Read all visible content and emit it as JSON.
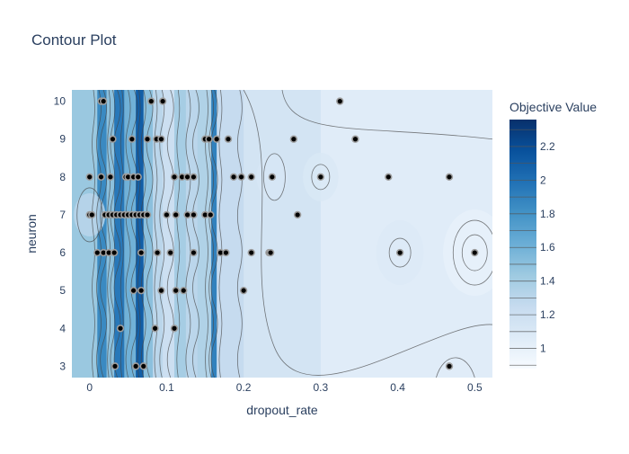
{
  "chart_data": {
    "type": "contour",
    "title": "Contour Plot",
    "xlabel": "dropout_rate",
    "ylabel": "neuron",
    "xlim": [
      -0.023,
      0.523
    ],
    "ylim": [
      2.7,
      10.3
    ],
    "xticks": [
      {
        "value": 0,
        "label": "0"
      },
      {
        "value": 0.1,
        "label": "0.1"
      },
      {
        "value": 0.2,
        "label": "0.2"
      },
      {
        "value": 0.3,
        "label": "0.3"
      },
      {
        "value": 0.4,
        "label": "0.4"
      },
      {
        "value": 0.5,
        "label": "0.5"
      }
    ],
    "yticks": [
      {
        "value": 3,
        "label": "3"
      },
      {
        "value": 4,
        "label": "4"
      },
      {
        "value": 5,
        "label": "5"
      },
      {
        "value": 6,
        "label": "6"
      },
      {
        "value": 7,
        "label": "7"
      },
      {
        "value": 8,
        "label": "8"
      },
      {
        "value": 9,
        "label": "9"
      },
      {
        "value": 10,
        "label": "10"
      }
    ],
    "colorbar": {
      "title": "Objective Value",
      "range": [
        0.88,
        2.36
      ],
      "ticks": [
        {
          "value": 1,
          "label": "1"
        },
        {
          "value": 1.2,
          "label": "1.2"
        },
        {
          "value": 1.4,
          "label": "1.4"
        },
        {
          "value": 1.6,
          "label": "1.6"
        },
        {
          "value": 1.8,
          "label": "1.8"
        },
        {
          "value": 2,
          "label": "2"
        },
        {
          "value": 2.2,
          "label": "2.2"
        }
      ],
      "colors": [
        "#f7fbff",
        "#deebf7",
        "#c6dbef",
        "#9ecae1",
        "#6baed6",
        "#4292c6",
        "#2171b5",
        "#08519c",
        "#08306b"
      ]
    },
    "background_bands": [
      {
        "x": [
          -0.023,
          0.01
        ],
        "value": 1.45
      },
      {
        "x": [
          0.01,
          0.022
        ],
        "value": 1.85
      },
      {
        "x": [
          0.022,
          0.032
        ],
        "value": 1.5
      },
      {
        "x": [
          0.032,
          0.045
        ],
        "value": 1.95
      },
      {
        "x": [
          0.045,
          0.06
        ],
        "value": 1.6
      },
      {
        "x": [
          0.06,
          0.07
        ],
        "value": 2.1
      },
      {
        "x": [
          0.07,
          0.082
        ],
        "value": 1.5
      },
      {
        "x": [
          0.082,
          0.095
        ],
        "value": 1.3
      },
      {
        "x": [
          0.095,
          0.11
        ],
        "value": 1.2
      },
      {
        "x": [
          0.11,
          0.125
        ],
        "value": 1.4
      },
      {
        "x": [
          0.125,
          0.14
        ],
        "value": 1.3
      },
      {
        "x": [
          0.14,
          0.158
        ],
        "value": 1.35
      },
      {
        "x": [
          0.158,
          0.165
        ],
        "value": 1.9
      },
      {
        "x": [
          0.165,
          0.2
        ],
        "value": 1.25
      },
      {
        "x": [
          0.2,
          0.3
        ],
        "value": 1.15
      },
      {
        "x": [
          0.3,
          0.523
        ],
        "value": 1.05
      }
    ],
    "contour_lines_x": [
      0.005,
      0.012,
      0.018,
      0.025,
      0.03,
      0.036,
      0.042,
      0.05,
      0.058,
      0.064,
      0.07,
      0.078,
      0.086,
      0.094,
      0.105,
      0.115,
      0.128,
      0.138,
      0.152,
      0.158,
      0.162,
      0.17,
      0.195
    ],
    "points": [
      {
        "x": 0.015,
        "y": 10
      },
      {
        "x": 0.018,
        "y": 10
      },
      {
        "x": 0.08,
        "y": 10
      },
      {
        "x": 0.095,
        "y": 10
      },
      {
        "x": 0.325,
        "y": 10
      },
      {
        "x": 0.03,
        "y": 9
      },
      {
        "x": 0.055,
        "y": 9
      },
      {
        "x": 0.075,
        "y": 9
      },
      {
        "x": 0.087,
        "y": 9
      },
      {
        "x": 0.093,
        "y": 9
      },
      {
        "x": 0.15,
        "y": 9
      },
      {
        "x": 0.155,
        "y": 9
      },
      {
        "x": 0.165,
        "y": 9
      },
      {
        "x": 0.18,
        "y": 9
      },
      {
        "x": 0.265,
        "y": 9
      },
      {
        "x": 0.345,
        "y": 9
      },
      {
        "x": 0.0,
        "y": 8
      },
      {
        "x": 0.015,
        "y": 8
      },
      {
        "x": 0.027,
        "y": 8
      },
      {
        "x": 0.047,
        "y": 8
      },
      {
        "x": 0.05,
        "y": 8
      },
      {
        "x": 0.057,
        "y": 8
      },
      {
        "x": 0.063,
        "y": 8
      },
      {
        "x": 0.11,
        "y": 8
      },
      {
        "x": 0.12,
        "y": 8
      },
      {
        "x": 0.127,
        "y": 8
      },
      {
        "x": 0.135,
        "y": 8
      },
      {
        "x": 0.187,
        "y": 8
      },
      {
        "x": 0.197,
        "y": 8
      },
      {
        "x": 0.21,
        "y": 8
      },
      {
        "x": 0.237,
        "y": 8
      },
      {
        "x": 0.3,
        "y": 8
      },
      {
        "x": 0.388,
        "y": 8
      },
      {
        "x": 0.467,
        "y": 8
      },
      {
        "x": 0.0,
        "y": 7
      },
      {
        "x": 0.003,
        "y": 7
      },
      {
        "x": 0.02,
        "y": 7
      },
      {
        "x": 0.025,
        "y": 7
      },
      {
        "x": 0.03,
        "y": 7
      },
      {
        "x": 0.035,
        "y": 7
      },
      {
        "x": 0.04,
        "y": 7
      },
      {
        "x": 0.045,
        "y": 7
      },
      {
        "x": 0.05,
        "y": 7
      },
      {
        "x": 0.055,
        "y": 7
      },
      {
        "x": 0.06,
        "y": 7
      },
      {
        "x": 0.065,
        "y": 7
      },
      {
        "x": 0.07,
        "y": 7
      },
      {
        "x": 0.075,
        "y": 7
      },
      {
        "x": 0.1,
        "y": 7
      },
      {
        "x": 0.112,
        "y": 7
      },
      {
        "x": 0.127,
        "y": 7
      },
      {
        "x": 0.135,
        "y": 7
      },
      {
        "x": 0.15,
        "y": 7
      },
      {
        "x": 0.157,
        "y": 7
      },
      {
        "x": 0.27,
        "y": 7
      },
      {
        "x": 0.01,
        "y": 6
      },
      {
        "x": 0.018,
        "y": 6
      },
      {
        "x": 0.025,
        "y": 6
      },
      {
        "x": 0.032,
        "y": 6
      },
      {
        "x": 0.067,
        "y": 6
      },
      {
        "x": 0.088,
        "y": 6
      },
      {
        "x": 0.105,
        "y": 6
      },
      {
        "x": 0.135,
        "y": 6
      },
      {
        "x": 0.17,
        "y": 6
      },
      {
        "x": 0.177,
        "y": 6
      },
      {
        "x": 0.21,
        "y": 6
      },
      {
        "x": 0.233,
        "y": 6
      },
      {
        "x": 0.235,
        "y": 6
      },
      {
        "x": 0.403,
        "y": 6
      },
      {
        "x": 0.5,
        "y": 6
      },
      {
        "x": 0.057,
        "y": 5
      },
      {
        "x": 0.067,
        "y": 5
      },
      {
        "x": 0.093,
        "y": 5
      },
      {
        "x": 0.112,
        "y": 5
      },
      {
        "x": 0.122,
        "y": 5
      },
      {
        "x": 0.2,
        "y": 5
      },
      {
        "x": 0.04,
        "y": 4
      },
      {
        "x": 0.085,
        "y": 4
      },
      {
        "x": 0.11,
        "y": 4
      },
      {
        "x": 0.033,
        "y": 3
      },
      {
        "x": 0.06,
        "y": 3
      },
      {
        "x": 0.07,
        "y": 3
      },
      {
        "x": 0.467,
        "y": 3
      }
    ]
  }
}
